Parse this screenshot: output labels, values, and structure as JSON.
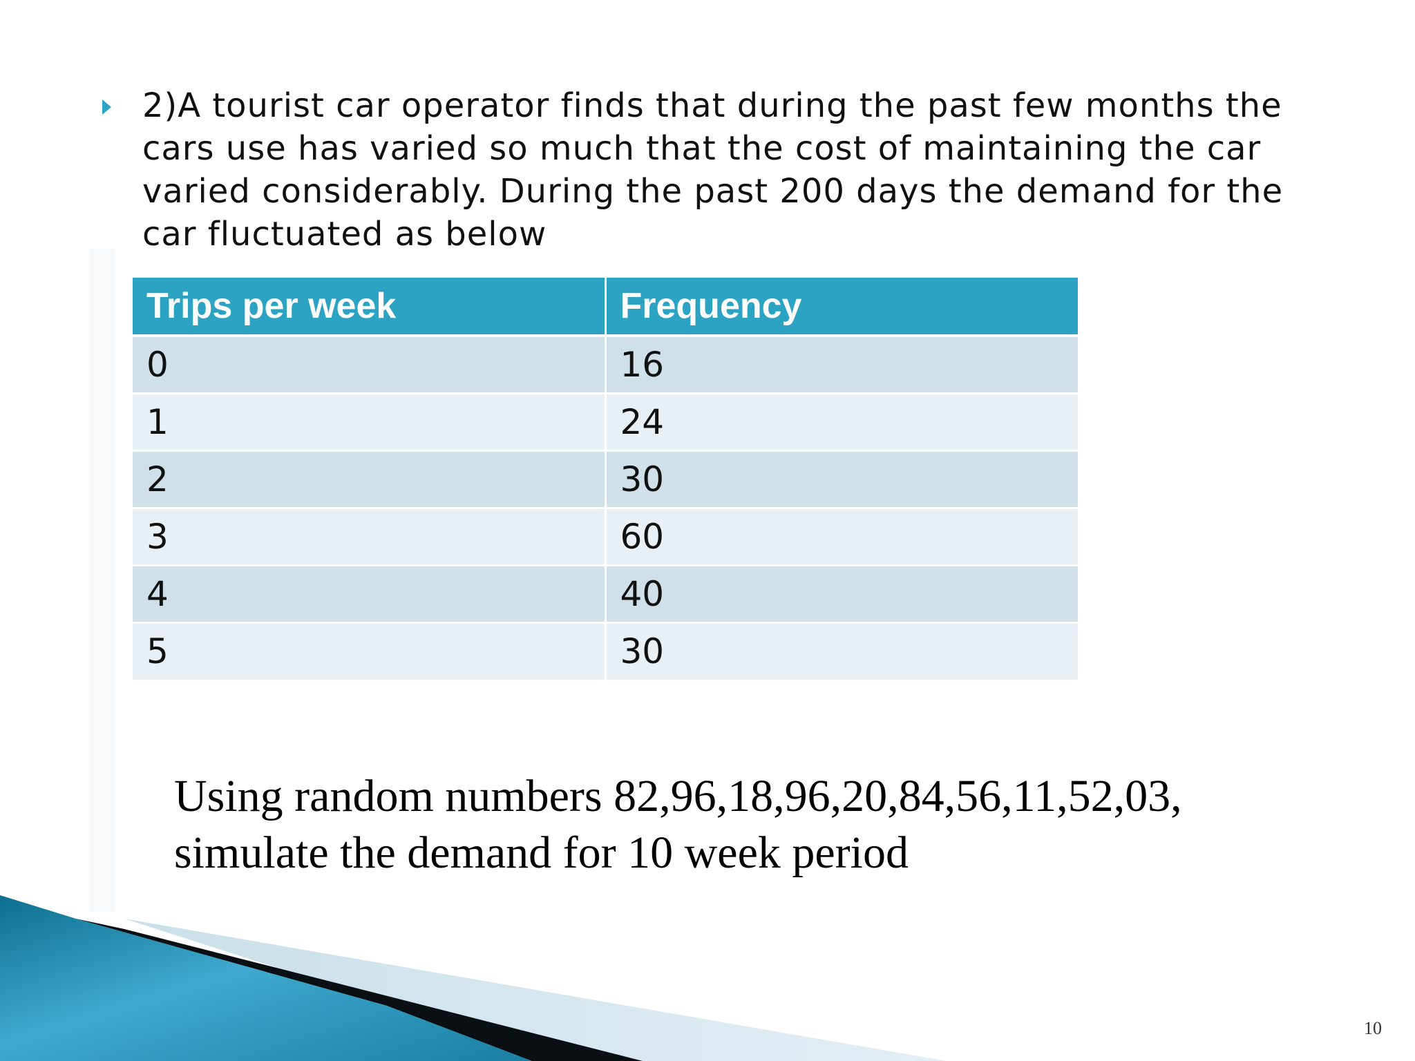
{
  "slide": {
    "bullet_text": "2)A tourist car operator finds that during the past few months the cars use has varied so much that the cost of maintaining the car varied considerably. During the past 200 days the demand for the car fluctuated as below",
    "table": {
      "headers": [
        "Trips per week",
        "Frequency"
      ],
      "rows": [
        [
          "0",
          "16"
        ],
        [
          "1",
          "24"
        ],
        [
          "2",
          "30"
        ],
        [
          "3",
          "60"
        ],
        [
          "4",
          "40"
        ],
        [
          "5",
          "30"
        ]
      ]
    },
    "instruction_line1": "Using random numbers 82,96,18,96,20,84,56,11,52,03,",
    "instruction_line2": "simulate the demand for 10 week period",
    "page_number": "10"
  },
  "colors": {
    "accent": "#2da3c3",
    "row_dark": "#cfe0e8",
    "row_light": "#e8eff5"
  }
}
